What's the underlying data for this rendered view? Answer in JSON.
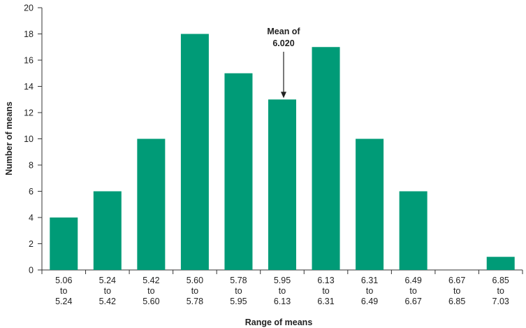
{
  "chart_data": {
    "type": "bar",
    "categories": [
      [
        "5.06",
        "to",
        "5.24"
      ],
      [
        "5.24",
        "to",
        "5.42"
      ],
      [
        "5.42",
        "to",
        "5.60"
      ],
      [
        "5.60",
        "to",
        "5.78"
      ],
      [
        "5.78",
        "to",
        "5.95"
      ],
      [
        "5.95",
        "to",
        "6.13"
      ],
      [
        "6.13",
        "to",
        "6.31"
      ],
      [
        "6.31",
        "to",
        "6.49"
      ],
      [
        "6.49",
        "to",
        "6.67"
      ],
      [
        "6.67",
        "to",
        "6.85"
      ],
      [
        "6.85",
        "to",
        "7.03"
      ]
    ],
    "values": [
      4,
      6,
      10,
      18,
      15,
      13,
      17,
      10,
      6,
      0,
      1
    ],
    "xlabel": "Range of means",
    "ylabel": "Number of means",
    "ylim": [
      0,
      20
    ],
    "yticks": [
      0,
      2,
      4,
      6,
      8,
      10,
      12,
      14,
      16,
      18,
      20
    ],
    "grid": false,
    "bar_color": "#009b77",
    "annotation": {
      "lines": [
        "Mean of",
        "6.020"
      ],
      "category_index": 5
    }
  }
}
